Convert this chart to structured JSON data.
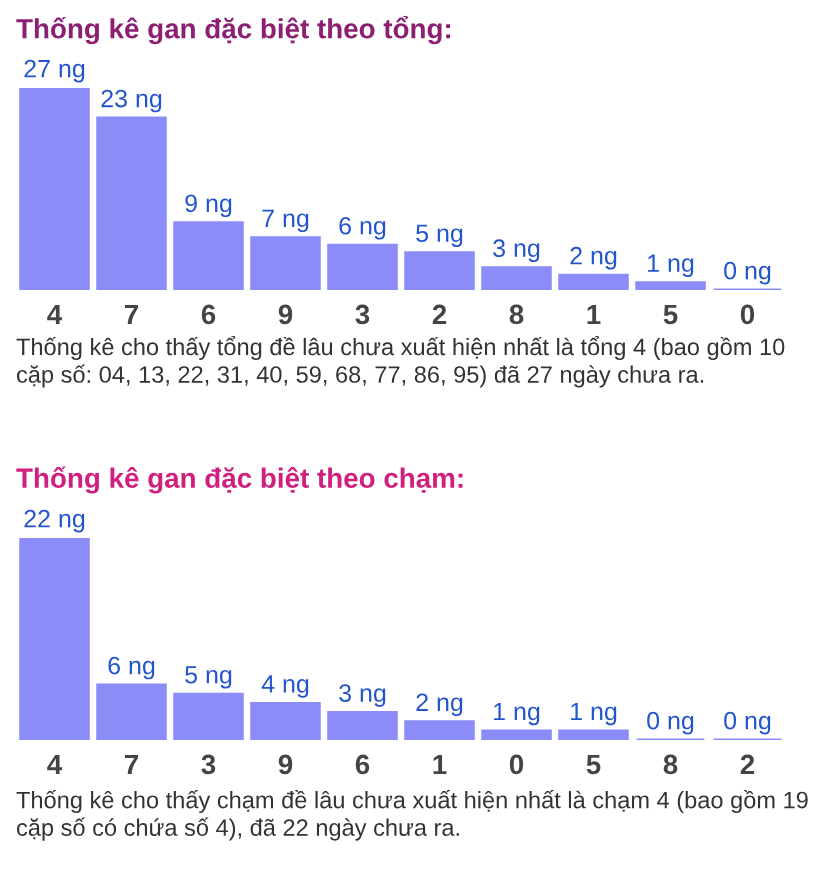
{
  "chart_data": [
    {
      "type": "bar",
      "title": "Thống kê gan đặc biệt theo tổng:",
      "categories": [
        "4",
        "7",
        "6",
        "9",
        "3",
        "2",
        "8",
        "1",
        "5",
        "0"
      ],
      "values": [
        27,
        23,
        9,
        7,
        6,
        5,
        3,
        2,
        1,
        0
      ],
      "value_labels": [
        "27 ng",
        "23 ng",
        "9 ng",
        "7 ng",
        "6 ng",
        "5 ng",
        "3 ng",
        "2 ng",
        "1 ng",
        "0 ng"
      ],
      "color": "#8c8cf8",
      "ylim": [
        0,
        27
      ],
      "tick_labels": "x",
      "grid": false,
      "legend": false,
      "annotations": [
        "Thống kê cho thấy tổng đề lâu chưa xuất hiện nhất là tổng 4 (bao gồm 10 cặp số: 04, 13, 22, 31, 40, 59, 68, 77, 86, 95) đã 27 ngày chưa ra."
      ]
    },
    {
      "type": "bar",
      "title": "Thống kê gan đặc biệt theo chạm:",
      "categories": [
        "4",
        "7",
        "3",
        "9",
        "6",
        "1",
        "0",
        "5",
        "8",
        "2"
      ],
      "values": [
        22,
        6,
        5,
        4,
        3,
        2,
        1,
        1,
        0,
        0
      ],
      "value_labels": [
        "22 ng",
        "6 ng",
        "5 ng",
        "4 ng",
        "3 ng",
        "2 ng",
        "1 ng",
        "1 ng",
        "0 ng",
        "0 ng"
      ],
      "color": "#8c8cf8",
      "ylim": [
        0,
        22
      ],
      "tick_labels": "x",
      "grid": false,
      "legend": false,
      "annotations": [
        "Thống kê cho thấy chạm đề lâu chưa xuất hiện nhất là chạm 4 (bao gồm 19 cặp số có chứa số 4), đã 22 ngày chưa ra."
      ]
    }
  ]
}
